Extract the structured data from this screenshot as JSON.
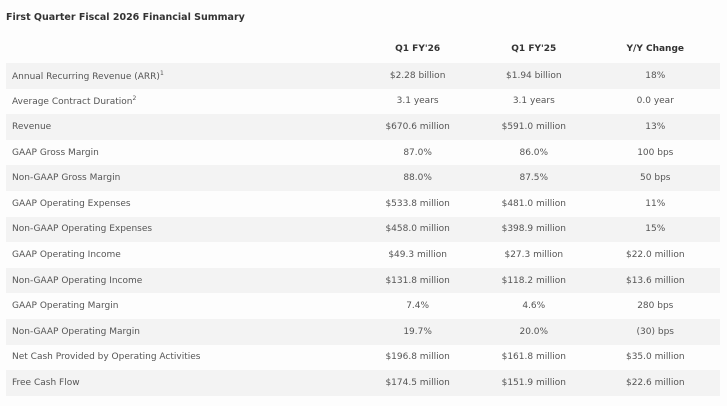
{
  "title": "First Quarter Fiscal 2026 Financial Summary",
  "columns": [
    "",
    "Q1 FY'26",
    "Q1 FY'25",
    "Y/Y Change"
  ],
  "rows": [
    {
      "label": "Annual Recurring Revenue (ARR)",
      "sup": "1",
      "q1fy26": "$2.28 billion",
      "q1fy25": "$1.94 billion",
      "change": "18%"
    },
    {
      "label": "Average Contract Duration",
      "sup": "2",
      "q1fy26": "3.1 years",
      "q1fy25": "3.1 years",
      "change": "0.0 year"
    },
    {
      "label": "Revenue",
      "q1fy26": "$670.6 million",
      "q1fy25": "$591.0 million",
      "change": "13%"
    },
    {
      "label": "GAAP Gross Margin",
      "q1fy26": "87.0%",
      "q1fy25": "86.0%",
      "change": "100 bps"
    },
    {
      "label": "Non-GAAP Gross Margin",
      "q1fy26": "88.0%",
      "q1fy25": "87.5%",
      "change": "50 bps"
    },
    {
      "label": "GAAP Operating Expenses",
      "q1fy26": "$533.8 million",
      "q1fy25": "$481.0 million",
      "change": "11%"
    },
    {
      "label": "Non-GAAP Operating Expenses",
      "q1fy26": "$458.0 million",
      "q1fy25": "$398.9 million",
      "change": "15%"
    },
    {
      "label": "GAAP Operating Income",
      "q1fy26": "$49.3 million",
      "q1fy25": "$27.3 million",
      "change": "$22.0 million"
    },
    {
      "label": "Non-GAAP Operating Income",
      "q1fy26": "$131.8 million",
      "q1fy25": "$118.2 million",
      "change": "$13.6 million"
    },
    {
      "label": "GAAP Operating Margin",
      "q1fy26": "7.4%",
      "q1fy25": "4.6%",
      "change": "280 bps"
    },
    {
      "label": "Non-GAAP Operating Margin",
      "q1fy26": "19.7%",
      "q1fy25": "20.0%",
      "change": "(30) bps"
    },
    {
      "label": "Net Cash Provided by Operating Activities",
      "q1fy26": "$196.8 million",
      "q1fy25": "$161.8 million",
      "change": "$35.0 million"
    },
    {
      "label": "Free Cash Flow",
      "q1fy26": "$174.5 million",
      "q1fy25": "$151.9 million",
      "change": "$22.6 million"
    }
  ]
}
